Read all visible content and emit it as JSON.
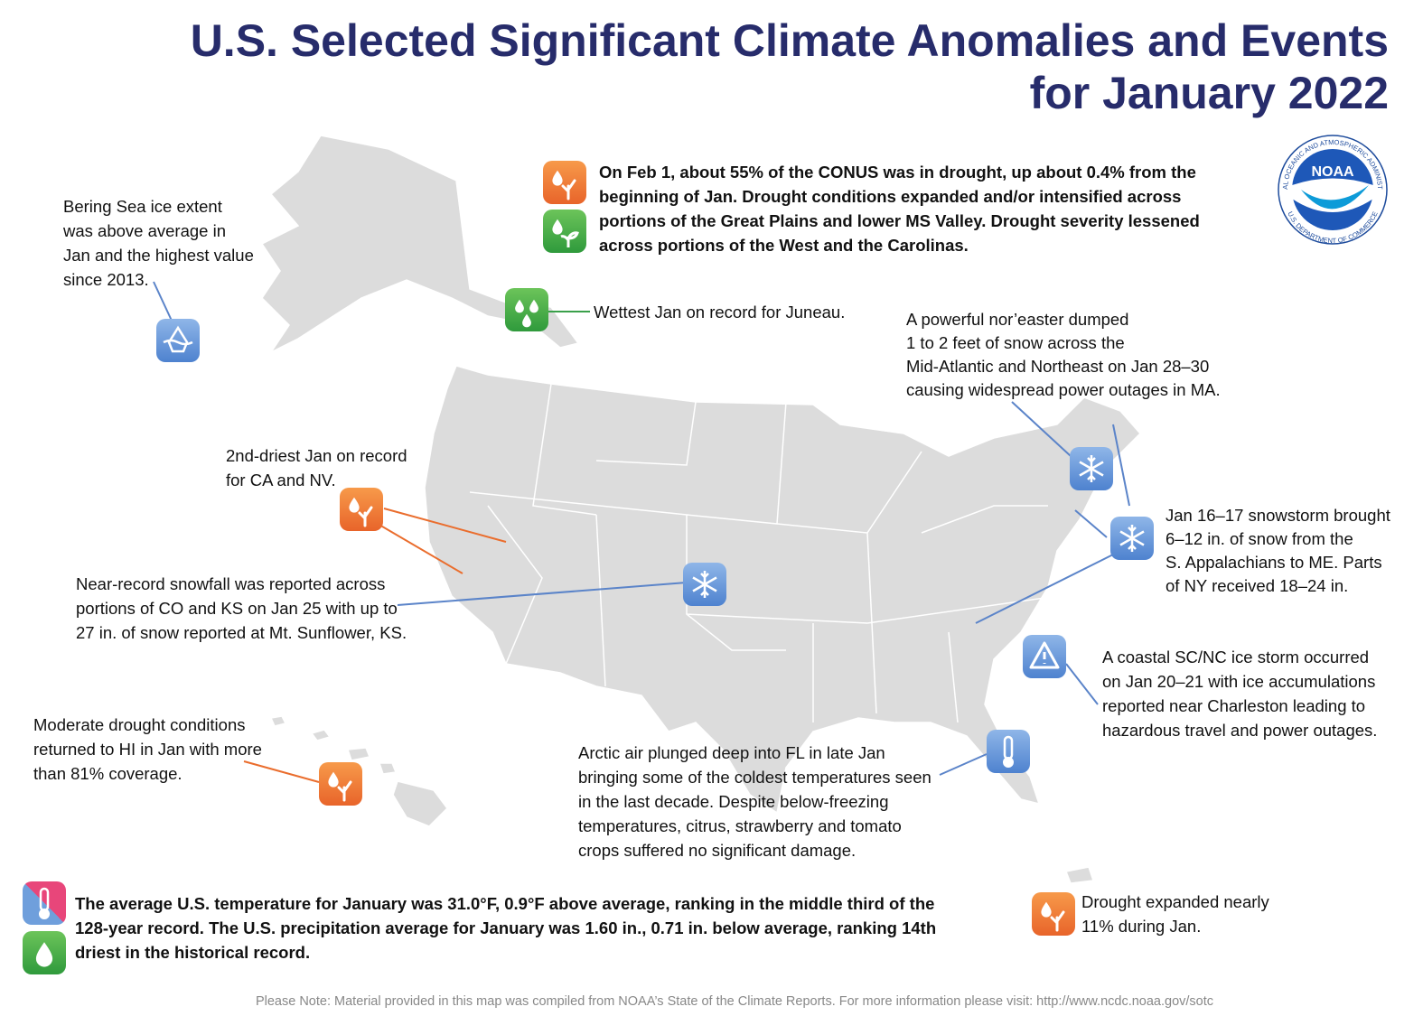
{
  "header": {
    "title": [
      "U.S. Selected Significant Climate Anomalies and Events",
      "for January 2022"
    ]
  },
  "logo": {
    "name": "NOAA",
    "ring_top": "NATIONAL OCEANIC AND ATMOSPHERIC ADMINISTRATION",
    "ring_bottom": "U.S. DEPARTMENT OF COMMERCE"
  },
  "annotations": [
    {
      "lines": [
        "On Feb 1, about 55% of the CONUS was in drought, up about 0.4% from the",
        "beginning of Jan. Drought conditions expanded and/or intensified across",
        "portions of the Great Plains and lower MS Valley. Drought severity lessened",
        "across portions of the West and the Carolinas."
      ]
    },
    {
      "lines": [
        "Bering Sea ice extent",
        "was above average in",
        "Jan and the highest value",
        "since 2013."
      ]
    },
    {
      "lines": [
        "Wettest Jan on record for Juneau."
      ]
    },
    {
      "lines": [
        "A powerful nor’easter dumped",
        "1 to 2 feet of snow across the",
        "Mid-Atlantic and Northeast on Jan 28–30",
        "causing widespread power outages in MA."
      ]
    },
    {
      "lines": [
        "2nd-driest Jan on record",
        "for CA and NV."
      ]
    },
    {
      "lines": [
        "Near-record snowfall was reported across",
        "portions of CO and KS on Jan 25 with up to",
        "27 in. of snow reported at Mt. Sunflower, KS."
      ]
    },
    {
      "lines": [
        "Jan 16–17 snowstorm brought",
        "6–12 in. of snow from the",
        "S. Appalachians to ME. Parts",
        "of NY received 18–24 in."
      ]
    },
    {
      "lines": [
        "A coastal SC/NC ice storm occurred",
        "on Jan 20–21 with ice accumulations",
        "reported near Charleston leading to",
        "hazardous travel and power outages."
      ]
    },
    {
      "lines": [
        "Moderate drought conditions",
        "returned to HI in Jan with more",
        "than 81% coverage."
      ]
    },
    {
      "lines": [
        "Arctic air plunged deep into FL in late Jan",
        "bringing some of the coldest temperatures seen",
        "in the last decade. Despite below-freezing",
        "temperatures, citrus, strawberry and tomato",
        "crops suffered no significant damage."
      ]
    },
    {
      "lines": [
        "The average U.S. temperature for January was 31.0°F, 0.9°F above average, ranking in the middle third of the",
        "128-year record. The U.S. precipitation average for January was 1.60 in., 0.71 in. below average, ranking 14th",
        "driest in the historical record."
      ]
    },
    {
      "lines": [
        "Drought expanded nearly",
        "11% during Jan."
      ]
    }
  ],
  "footnote": "Please Note: Material provided in this map was compiled from NOAA’s State of the Climate Reports. For more information please visit: http://www.ncdc.noaa.gov/sotc"
}
